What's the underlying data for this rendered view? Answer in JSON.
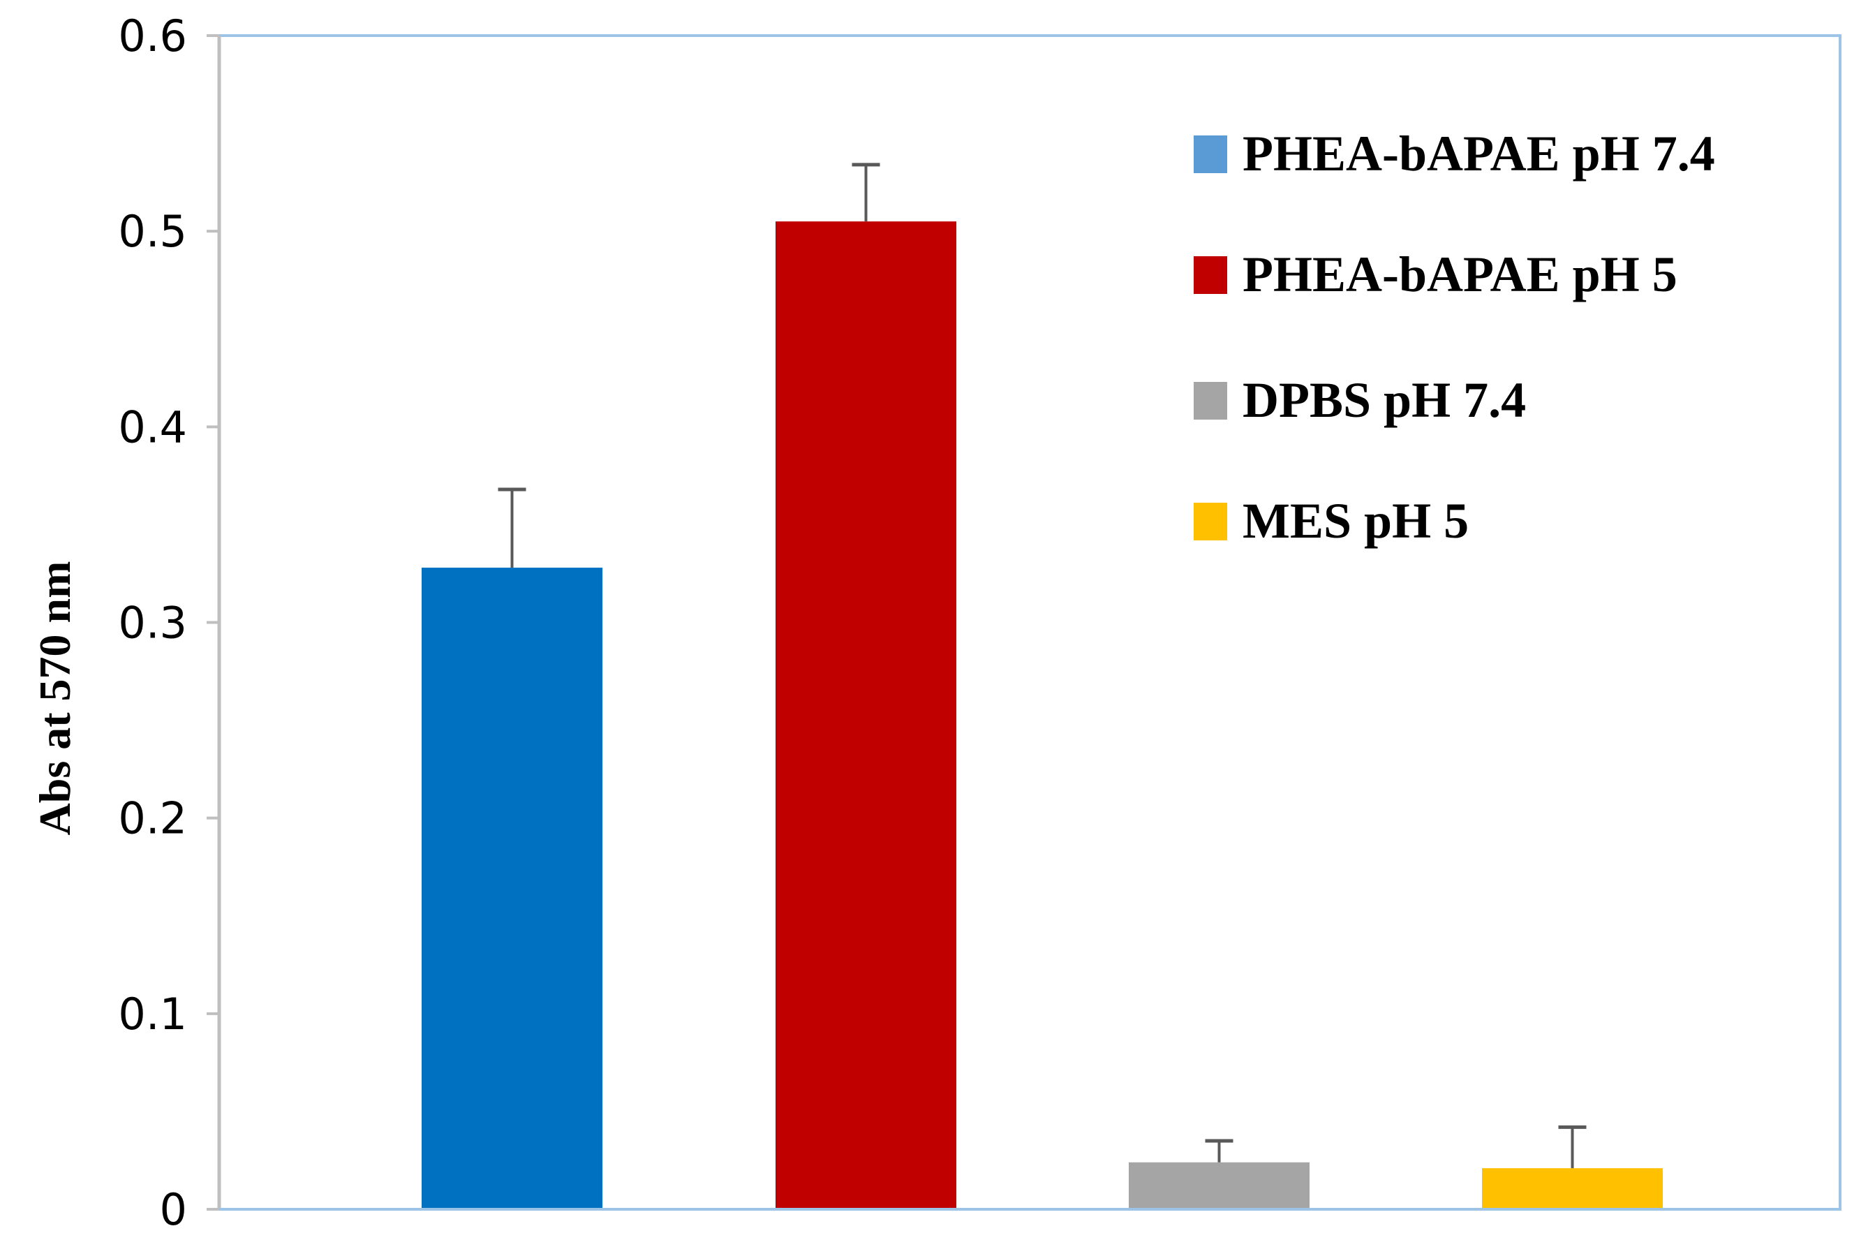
{
  "chart_data": {
    "type": "bar",
    "title": "",
    "xlabel": "",
    "ylabel": "Abs at 570 nm",
    "ylim": [
      0,
      0.6
    ],
    "yticks": [
      "0",
      "0.1",
      "0.2",
      "0.3",
      "0.4",
      "0.5",
      "0.6"
    ],
    "grid": false,
    "legend_position": "upper right (inside plot)",
    "categories": [
      "PHEA-bAPAE pH 7.4",
      "PHEA-bAPAE pH 5",
      "DPBS pH 7.4",
      "MES pH 5"
    ],
    "values": [
      0.328,
      0.505,
      0.024,
      0.021
    ],
    "error_upper": [
      0.04,
      0.029,
      0.011,
      0.021
    ],
    "series": [
      {
        "name": "PHEA-bAPAE pH 7.4",
        "value": 0.328,
        "error": 0.04,
        "bar_color": "#0070c0",
        "legend_color": "#5b9bd5"
      },
      {
        "name": "PHEA-bAPAE pH 5",
        "value": 0.505,
        "error": 0.029,
        "bar_color": "#c00000",
        "legend_color": "#c00000"
      },
      {
        "name": "DPBS pH 7.4",
        "value": 0.024,
        "error": 0.011,
        "bar_color": "#a5a5a5",
        "legend_color": "#a5a5a5"
      },
      {
        "name": "MES pH 5",
        "value": 0.021,
        "error": 0.021,
        "bar_color": "#ffc000",
        "legend_color": "#ffc000"
      }
    ]
  },
  "legend": {
    "items": [
      {
        "label": "PHEA-bAPAE pH 7.4",
        "color": "#5b9bd5"
      },
      {
        "label": "PHEA-bAPAE pH 5",
        "color": "#c00000"
      },
      {
        "label": "DPBS pH 7.4",
        "color": "#a5a5a5"
      },
      {
        "label": "MES pH 5",
        "color": "#ffc000"
      }
    ]
  },
  "axis": {
    "ylabel": "Abs at 570 nm",
    "ticks": [
      "0",
      "0.1",
      "0.2",
      "0.3",
      "0.4",
      "0.5",
      "0.6"
    ]
  },
  "colors": {
    "frame": "#9dc3e6",
    "axis": "#bfbfbf",
    "error_bar": "#595959"
  }
}
